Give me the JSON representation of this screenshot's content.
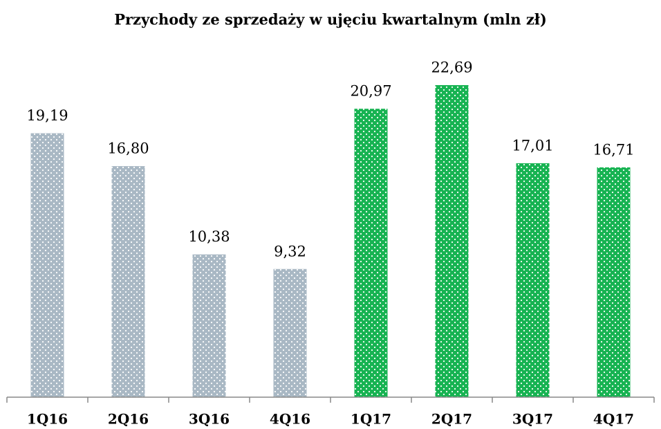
{
  "chart_data": {
    "type": "bar",
    "title": "Przychody ze sprzedaży w ujęciu kwartalnym (mln zł)",
    "categories": [
      "1Q16",
      "2Q16",
      "3Q16",
      "4Q16",
      "1Q17",
      "2Q17",
      "3Q17",
      "4Q17"
    ],
    "values": [
      19.19,
      16.8,
      10.38,
      9.32,
      20.97,
      22.69,
      17.01,
      16.71
    ],
    "value_labels": [
      "19,19",
      "16,80",
      "10,38",
      "9,32",
      "20,97",
      "22,69",
      "17,01",
      "16,71"
    ],
    "colors": [
      "#a9b8c4",
      "#a9b8c4",
      "#a9b8c4",
      "#a9b8c4",
      "#17b352",
      "#17b352",
      "#17b352",
      "#17b352"
    ]
  }
}
